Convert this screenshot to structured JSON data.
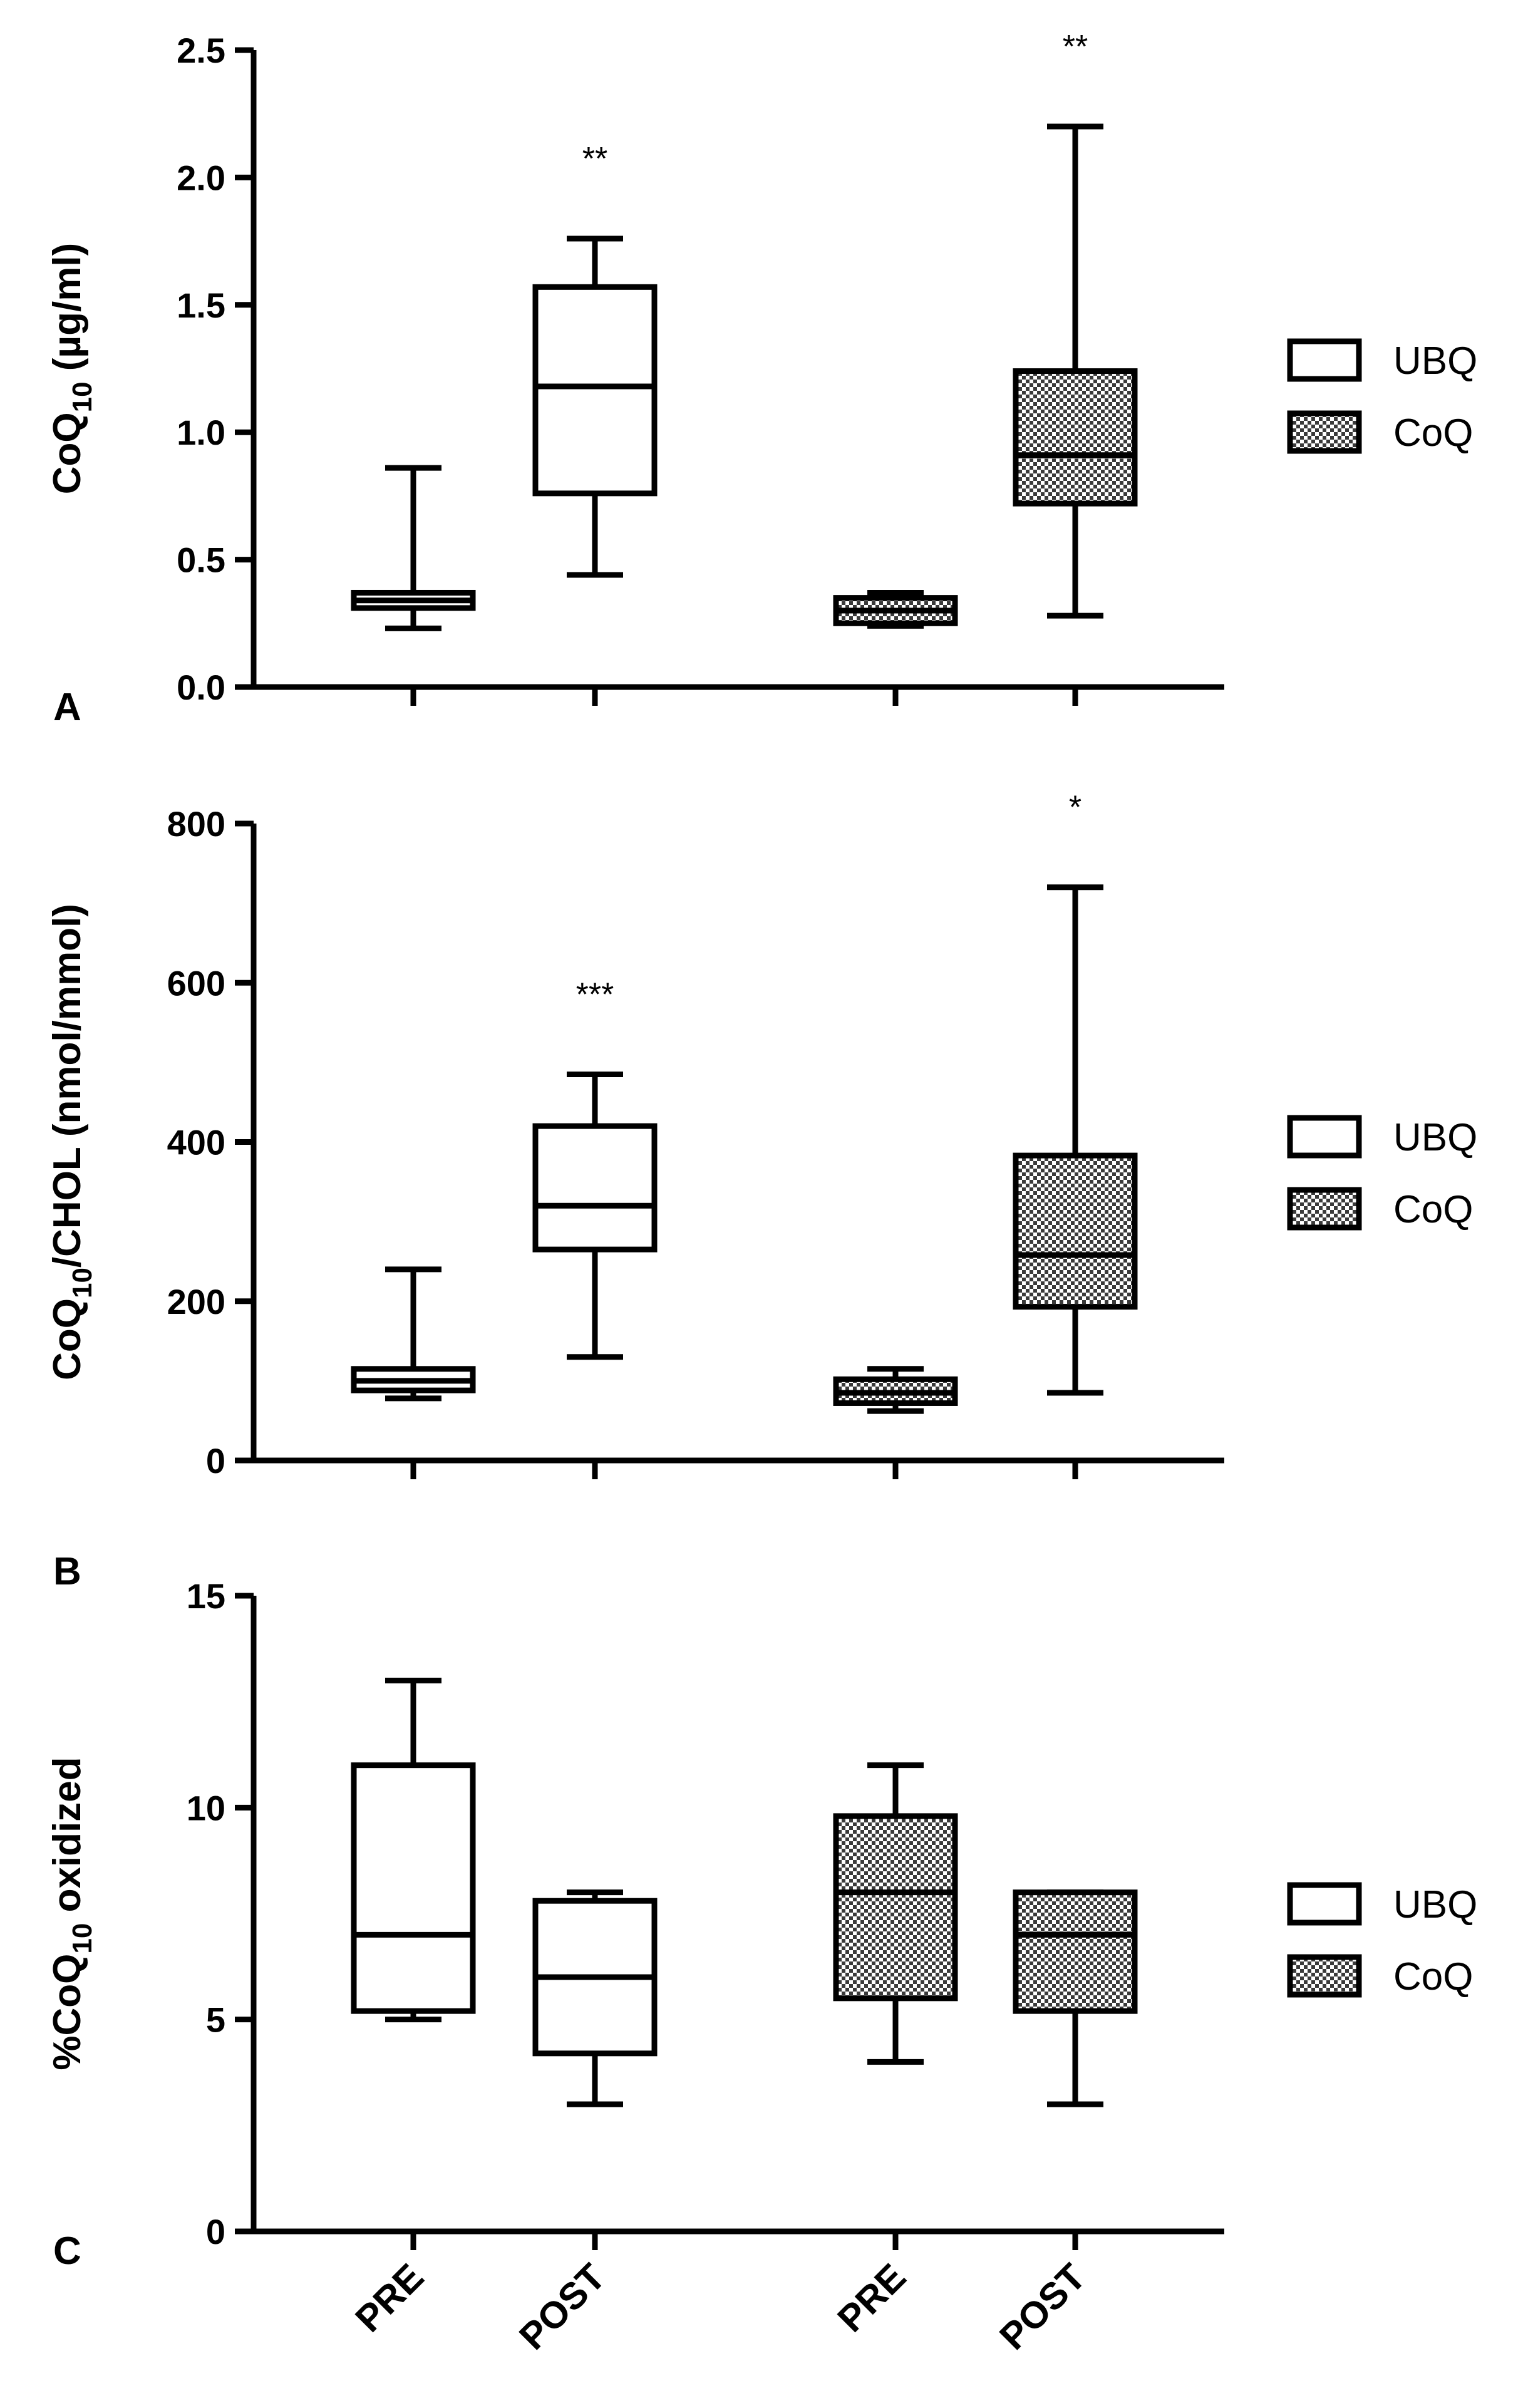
{
  "colors": {
    "stroke": "#000000",
    "box_fill_ubq": "#ffffff",
    "hatch_dark": "#3a3a3a",
    "hatch_light": "#ffffff",
    "background": "#ffffff"
  },
  "x_categories": [
    "PRE",
    "POST",
    "PRE",
    "POST"
  ],
  "chart_data": [
    {
      "type": "boxplot",
      "panel": "A",
      "ylabel": {
        "main": "CoQ",
        "sub": "10",
        "rest": " (µg/ml)"
      },
      "ylim": [
        0,
        2.5
      ],
      "yticks": [
        0.0,
        0.5,
        1.0,
        1.5,
        2.0,
        2.5
      ],
      "ytick_labels": [
        "0.0",
        "0.5",
        "1.0",
        "1.5",
        "2.0",
        "2.5"
      ],
      "legend": [
        "UBQ",
        "CoQ"
      ],
      "groups": [
        {
          "name": "UBQ",
          "category": "PRE",
          "min": 0.23,
          "q1": 0.31,
          "median": 0.34,
          "q3": 0.37,
          "max": 0.86,
          "annotation": ""
        },
        {
          "name": "UBQ",
          "category": "POST",
          "min": 0.44,
          "q1": 0.76,
          "median": 1.18,
          "q3": 1.57,
          "max": 1.76,
          "annotation": "**"
        },
        {
          "name": "CoQ",
          "category": "PRE",
          "min": 0.24,
          "q1": 0.25,
          "median": 0.3,
          "q3": 0.35,
          "max": 0.37,
          "annotation": ""
        },
        {
          "name": "CoQ",
          "category": "POST",
          "min": 0.28,
          "q1": 0.72,
          "median": 0.91,
          "q3": 1.24,
          "max": 2.2,
          "annotation": "**"
        }
      ]
    },
    {
      "type": "boxplot",
      "panel": "B",
      "ylabel": {
        "main": "CoQ",
        "sub": "10",
        "rest": "/CHOL (nmol/mmol)"
      },
      "ylim": [
        0,
        800
      ],
      "yticks": [
        0,
        200,
        400,
        600,
        800
      ],
      "ytick_labels": [
        "0",
        "200",
        "400",
        "600",
        "800"
      ],
      "legend": [
        "UBQ",
        "CoQ"
      ],
      "groups": [
        {
          "name": "UBQ",
          "category": "PRE",
          "min": 78,
          "q1": 88,
          "median": 100,
          "q3": 115,
          "max": 240,
          "annotation": ""
        },
        {
          "name": "UBQ",
          "category": "POST",
          "min": 130,
          "q1": 265,
          "median": 320,
          "q3": 420,
          "max": 485,
          "annotation": "***"
        },
        {
          "name": "CoQ",
          "category": "PRE",
          "min": 62,
          "q1": 72,
          "median": 85,
          "q3": 102,
          "max": 115,
          "annotation": ""
        },
        {
          "name": "CoQ",
          "category": "POST",
          "min": 85,
          "q1": 193,
          "median": 258,
          "q3": 383,
          "max": 720,
          "annotation": "*"
        }
      ]
    },
    {
      "type": "boxplot",
      "panel": "C",
      "ylabel": {
        "main": "%CoQ",
        "sub": "10",
        "rest": " oxidized"
      },
      "ylim": [
        0,
        15
      ],
      "yticks": [
        0,
        5,
        10,
        15
      ],
      "ytick_labels": [
        "0",
        "5",
        "10",
        "15"
      ],
      "legend": [
        "UBQ",
        "CoQ"
      ],
      "groups": [
        {
          "name": "UBQ",
          "category": "PRE",
          "min": 5.0,
          "q1": 5.2,
          "median": 7.0,
          "q3": 11.0,
          "max": 13.0,
          "annotation": ""
        },
        {
          "name": "UBQ",
          "category": "POST",
          "min": 3.0,
          "q1": 4.2,
          "median": 6.0,
          "q3": 7.8,
          "max": 8.0,
          "annotation": ""
        },
        {
          "name": "CoQ",
          "category": "PRE",
          "min": 4.0,
          "q1": 5.5,
          "median": 8.0,
          "q3": 9.8,
          "max": 11.0,
          "annotation": ""
        },
        {
          "name": "CoQ",
          "category": "POST",
          "min": 3.0,
          "q1": 5.2,
          "median": 7.0,
          "q3": 8.0,
          "max": 8.0,
          "annotation": ""
        }
      ]
    }
  ]
}
